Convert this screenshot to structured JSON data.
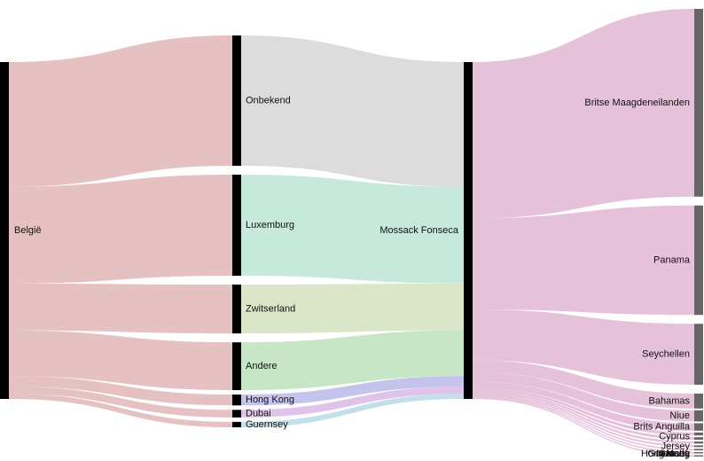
{
  "chart_data": {
    "type": "sankey",
    "colors": {
      "source": "#dca6a6",
      "node": "#000000",
      "target_node": "#666666",
      "onbekend": "#d3d3d3",
      "luxemburg": "#b9e4d2",
      "zwitserland": "#d2dfb9",
      "andere": "#b8e0b8",
      "hong_kong": "#b4b4e6",
      "dubai": "#d7b4e6",
      "guernsey": "#b4d7e6",
      "to_destination": "#dfb1d1"
    },
    "nodes": {
      "source": [
        {
          "id": "belgie",
          "label": "België"
        }
      ],
      "intermediaries": [
        {
          "id": "onbekend",
          "label": "Onbekend",
          "value": 120
        },
        {
          "id": "luxemburg",
          "label": "Luxemburg",
          "value": 93
        },
        {
          "id": "zwitserland",
          "label": "Zwitserland",
          "value": 45
        },
        {
          "id": "andere",
          "label": "Andere",
          "value": 44
        },
        {
          "id": "hong_kong",
          "label": "Hong Kong",
          "value": 10
        },
        {
          "id": "dubai",
          "label": "Dubai",
          "value": 7
        },
        {
          "id": "guernsey",
          "label": "Guernsey",
          "value": 5
        }
      ],
      "hub": [
        {
          "id": "mossack",
          "label": "Mossack Fonseca"
        }
      ],
      "destinations": [
        {
          "id": "bvi",
          "label": "Britse Maagdeneilanden",
          "value": 151
        },
        {
          "id": "panama",
          "label": "Panama",
          "value": 88
        },
        {
          "id": "seychellen",
          "label": "Seychellen",
          "value": 49
        },
        {
          "id": "bahamas",
          "label": "Bahamas",
          "value": 12
        },
        {
          "id": "niue",
          "label": "Niue",
          "value": 9
        },
        {
          "id": "anguilla",
          "label": "Brits Anguilla",
          "value": 6
        },
        {
          "id": "cyprus",
          "label": "Cyprus",
          "value": 2.4
        },
        {
          "id": "jersey",
          "label": "Jersey",
          "value": 2
        },
        {
          "id": "guernsey_d",
          "label": "Guernsey",
          "value": 1.7
        },
        {
          "id": "malta",
          "label": "Malta",
          "value": 1.4
        },
        {
          "id": "hongkong_d",
          "label": "Hong Kong",
          "value": 1.2
        },
        {
          "id": "nevada",
          "label": "Nevada",
          "value": 1
        },
        {
          "id": "samoa",
          "label": "Samoa",
          "value": 0.8
        }
      ]
    }
  }
}
